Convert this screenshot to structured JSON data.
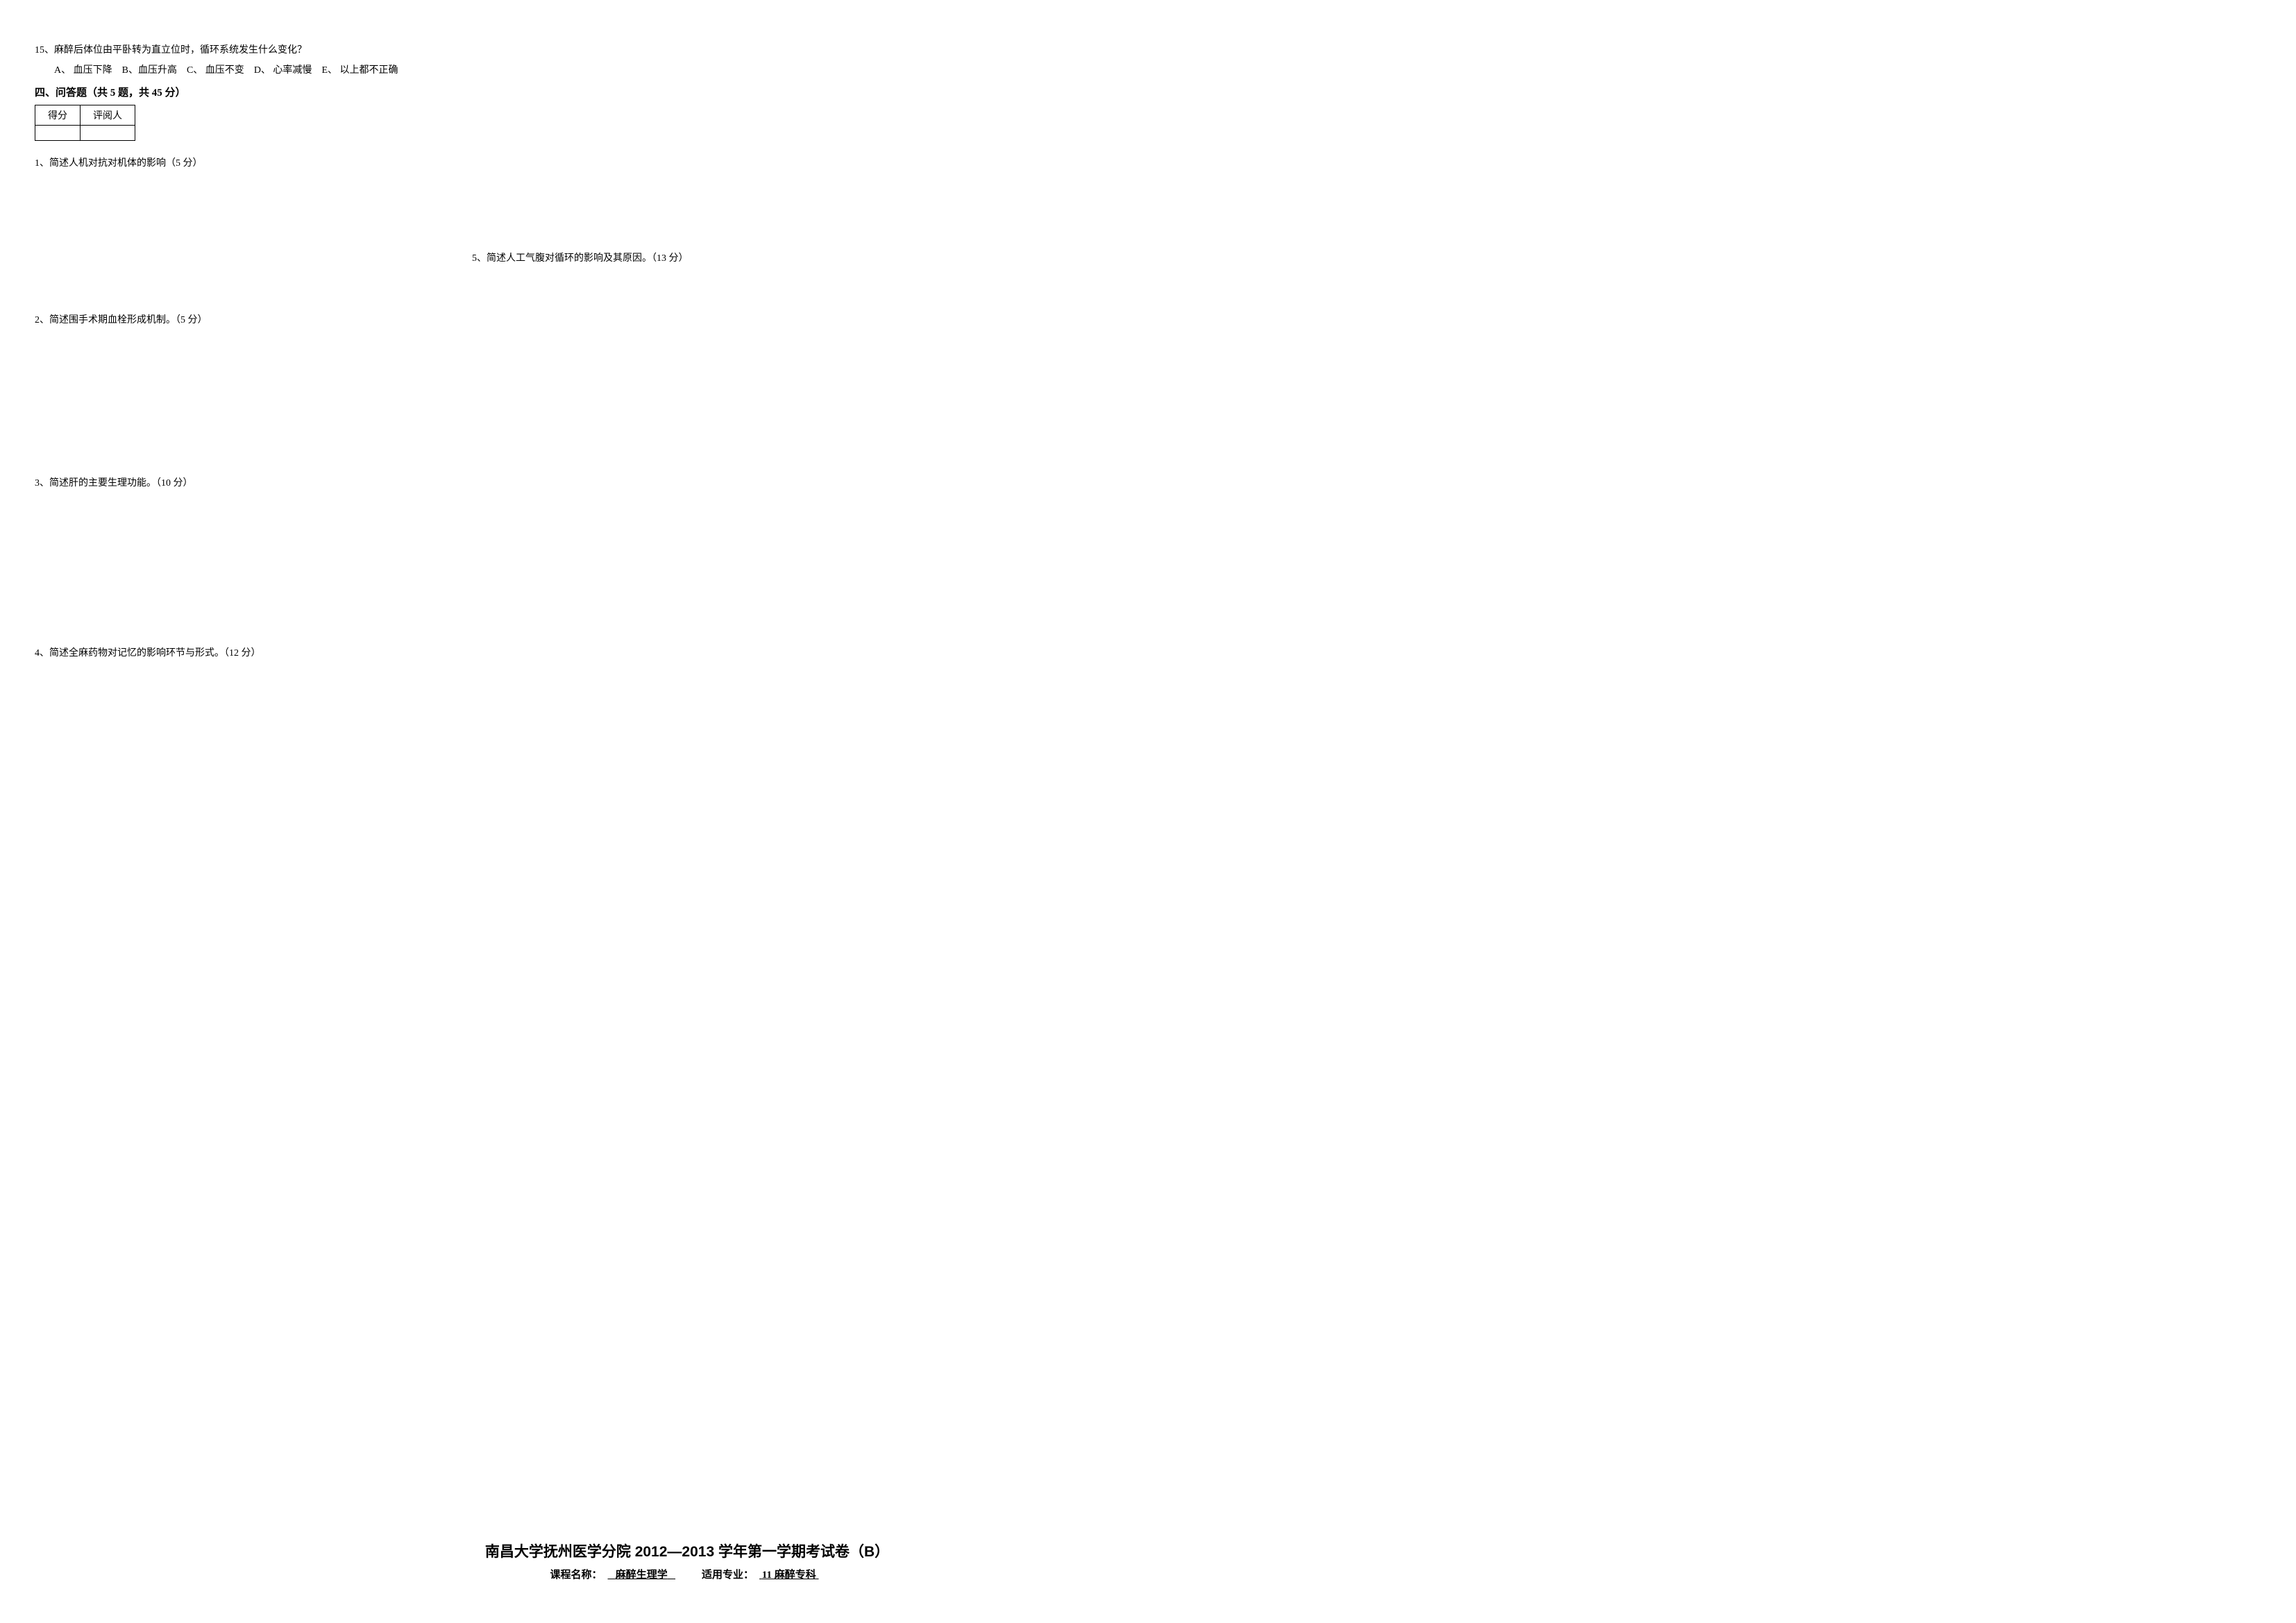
{
  "mcq15": {
    "number": "15、",
    "text": "麻醉后体位由平卧转为直立位时，循环系统发生什么变化？",
    "options": {
      "A": "A、 血压下降",
      "B": "B、血压升高",
      "C": "C、 血压不变",
      "D": "D、 心率减慢",
      "E": "E、 以上都不正确"
    }
  },
  "section4": {
    "title": "四、问答题（共 5 题，共 45 分）",
    "table": {
      "col1": "得分",
      "col2": "评阅人"
    },
    "questions": {
      "q1": "1、简述人机对抗对机体的影响（5 分）",
      "q2": "2、简述围手术期血栓形成机制。（5 分）",
      "q3": "3、简述肝的主要生理功能。（10 分）",
      "q4": "4、简述全麻药物对记忆的影响环节与形式。（12 分）",
      "q5": "5、简述人工气腹对循环的影响及其原因。（13 分）"
    }
  },
  "footer": {
    "title": "南昌大学抚州医学分院 2012—2013 学年第一学期考试卷（B）",
    "course_label": "课程名称：",
    "course_name": "麻醉生理学",
    "major_label": "适用专业：",
    "major_name": "11 麻醉专科"
  }
}
